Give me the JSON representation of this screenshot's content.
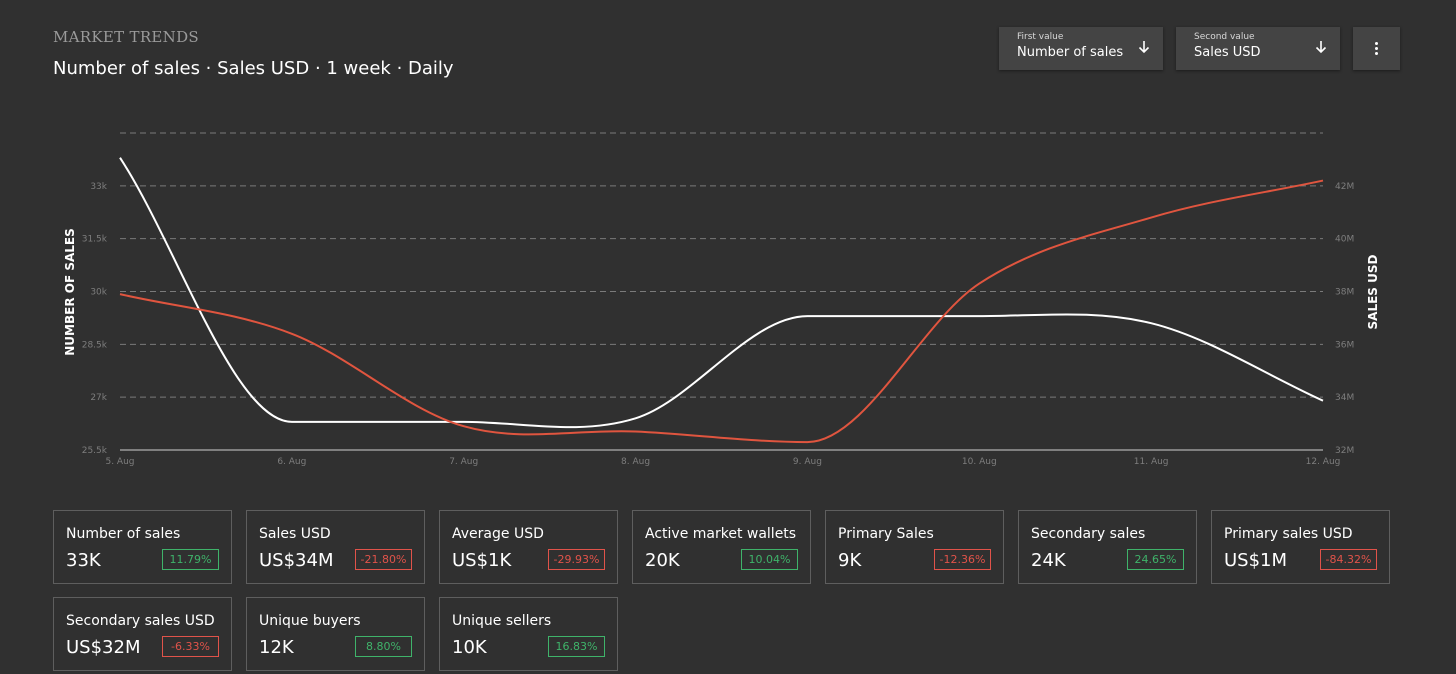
{
  "header": {
    "eyebrow": "MARKET TRENDS",
    "subtitle": "Number of sales · Sales USD · 1 week · Daily"
  },
  "controls": {
    "first": {
      "caption": "First value",
      "value": "Number of sales"
    },
    "second": {
      "caption": "Second value",
      "value": "Sales USD"
    },
    "more_icon": "more-vertical-icon",
    "arrow_icon": "arrow-down-icon"
  },
  "chart_data": {
    "type": "line",
    "x": [
      "5. Aug",
      "6. Aug",
      "7. Aug",
      "8. Aug",
      "9. Aug",
      "10. Aug",
      "11. Aug",
      "12. Aug"
    ],
    "ylabel_left": "NUMBER OF SALES",
    "ylabel_right": "SALES USD",
    "left_ticks": [
      "25.5k",
      "27k",
      "28.5k",
      "30k",
      "31.5k",
      "33k"
    ],
    "right_ticks": [
      "32M",
      "34M",
      "36M",
      "38M",
      "40M",
      "42M"
    ],
    "ylim_left": [
      25500,
      34500
    ],
    "ylim_right": [
      32000,
      44000
    ],
    "grid": true,
    "series": [
      {
        "axis": "left",
        "color": "#ffffff",
        "values": [
          33800,
          26300,
          26300,
          26400,
          29300,
          29300,
          29100,
          26900
        ]
      },
      {
        "axis": "right",
        "color": "#e0553f",
        "values": [
          37900,
          36400,
          32900,
          32700,
          32300,
          38300,
          40800,
          42200
        ]
      }
    ]
  },
  "cards": [
    {
      "label": "Number of sales",
      "value": "33K",
      "change": "11.79%",
      "trend": "up"
    },
    {
      "label": "Sales USD",
      "value": "US$34M",
      "change": "-21.80%",
      "trend": "down"
    },
    {
      "label": "Average USD",
      "value": "US$1K",
      "change": "-29.93%",
      "trend": "down"
    },
    {
      "label": "Active market wallets",
      "value": "20K",
      "change": "10.04%",
      "trend": "up"
    },
    {
      "label": "Primary Sales",
      "value": "9K",
      "change": "-12.36%",
      "trend": "down"
    },
    {
      "label": "Secondary sales",
      "value": "24K",
      "change": "24.65%",
      "trend": "up"
    },
    {
      "label": "Primary sales USD",
      "value": "US$1M",
      "change": "-84.32%",
      "trend": "down"
    },
    {
      "label": "Secondary sales USD",
      "value": "US$32M",
      "change": "-6.33%",
      "trend": "down"
    },
    {
      "label": "Unique buyers",
      "value": "12K",
      "change": "8.80%",
      "trend": "up"
    },
    {
      "label": "Unique sellers",
      "value": "10K",
      "change": "16.83%",
      "trend": "up"
    }
  ]
}
